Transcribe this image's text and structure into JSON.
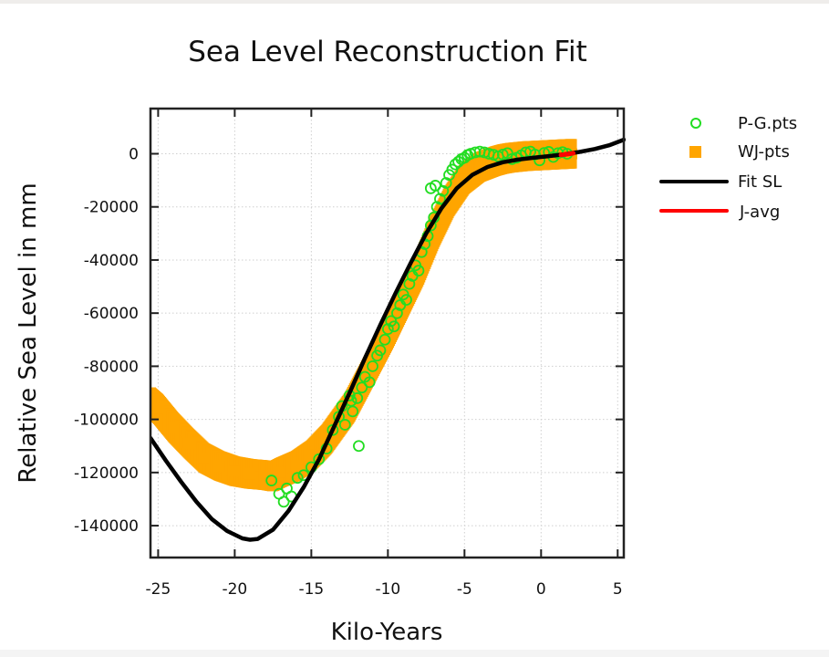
{
  "chart_data": {
    "type": "scatter",
    "title": "Sea Level Reconstruction Fit",
    "xlabel": "Kilo-Years",
    "ylabel": "Relative Sea Level in mm",
    "xlim": [
      -25.5,
      5.4
    ],
    "ylim": [
      -152000,
      17000
    ],
    "grid": true,
    "legend_position": "outside-top-right",
    "xticks": [
      -25,
      -20,
      -15,
      -10,
      -5,
      0,
      5
    ],
    "xtick_labels": [
      "-25",
      "-20",
      "-15",
      "-10",
      "-5",
      "0",
      "5"
    ],
    "yticks": [
      0,
      -20000,
      -40000,
      -60000,
      -80000,
      -100000,
      -120000,
      -140000
    ],
    "ytick_labels": [
      "0",
      "-20000",
      "-40000",
      "-60000",
      "-80000",
      "-100000",
      "-120000",
      "-140000"
    ],
    "series": [
      {
        "name": "P-G.pts",
        "kind": "scatter-open-circle",
        "color": "#22dd22",
        "x": [
          -17.6,
          -17.1,
          -16.8,
          -16.6,
          -16.3,
          -15.9,
          -15.5,
          -15.0,
          -14.5,
          -14.0,
          -13.6,
          -13.2,
          -13.0,
          -12.8,
          -12.5,
          -12.3,
          -12.0,
          -11.7,
          -11.5,
          -11.2,
          -11.0,
          -10.7,
          -10.5,
          -10.2,
          -10.0,
          -9.8,
          -9.6,
          -9.4,
          -9.2,
          -9.0,
          -8.8,
          -8.6,
          -8.4,
          -8.2,
          -8.0,
          -7.8,
          -7.6,
          -7.4,
          -7.2,
          -7.0,
          -6.8,
          -6.6,
          -6.4,
          -6.2,
          -6.0,
          -5.8,
          -5.6,
          -5.4,
          -5.2,
          -5.0,
          -4.8,
          -4.6,
          -4.3,
          -4.0,
          -3.7,
          -3.4,
          -3.1,
          -2.8,
          -2.5,
          -2.2,
          -1.9,
          -1.6,
          -1.3,
          -1.0,
          -0.7,
          -0.4,
          -0.1,
          0.2,
          0.5,
          0.8,
          1.1,
          1.4,
          1.7,
          -7.2,
          -6.9,
          -12.4,
          -11.9
        ],
        "y": [
          -123000,
          -128000,
          -131000,
          -126000,
          -129000,
          -122000,
          -121000,
          -118000,
          -115000,
          -111000,
          -104000,
          -99000,
          -95000,
          -102000,
          -91000,
          -97000,
          -92000,
          -88000,
          -84000,
          -86000,
          -80000,
          -76000,
          -74000,
          -70000,
          -66000,
          -63000,
          -65000,
          -60000,
          -57000,
          -53000,
          -55000,
          -49000,
          -46000,
          -42000,
          -44000,
          -37000,
          -34000,
          -31000,
          -27000,
          -24000,
          -20000,
          -17000,
          -14000,
          -11000,
          -8000,
          -6000,
          -4000,
          -3000,
          -2000,
          -1500,
          -500,
          0,
          500,
          800,
          500,
          0,
          -400,
          -1000,
          -300,
          200,
          -2000,
          -1500,
          -600,
          500,
          800,
          -300,
          -2500,
          300,
          700,
          -1200,
          200,
          600,
          0,
          -13000,
          -12000,
          -93000,
          -110000
        ]
      },
      {
        "name": "WJ-pts",
        "kind": "scatter-filled-square",
        "color": "#ffa500",
        "x": [
          -25.5,
          -25.0,
          -24.0,
          -23.0,
          -22.0,
          -21.0,
          -20.0,
          -19.0,
          -18.0,
          -17.5,
          -17.0,
          -16.0,
          -15.0,
          -14.0,
          -13.0,
          -12.5,
          -12.0,
          -11.0,
          -10.0,
          -9.0,
          -8.0,
          -7.5,
          -7.0,
          -6.0,
          -5.0,
          -4.0,
          -3.0,
          -2.5,
          -2.0,
          -1.0,
          0.0,
          1.0,
          2.0
        ],
        "y": [
          -93500,
          -96000,
          -103000,
          -109000,
          -114500,
          -117500,
          -119500,
          -120500,
          -121000,
          -121500,
          -120000,
          -117500,
          -113500,
          -107500,
          -99500,
          -95500,
          -90000,
          -79000,
          -68000,
          -56000,
          -44000,
          -37000,
          -30000,
          -18000,
          -9500,
          -5000,
          -2800,
          -2000,
          -1500,
          -900,
          -600,
          -300,
          0
        ]
      },
      {
        "name": "Fit SL",
        "kind": "line",
        "color": "#000000",
        "x": [
          -25.5,
          -24.5,
          -23.5,
          -22.5,
          -21.5,
          -20.5,
          -19.5,
          -19.0,
          -18.5,
          -17.5,
          -16.5,
          -15.5,
          -14.5,
          -13.5,
          -12.5,
          -11.5,
          -10.5,
          -9.5,
          -8.5,
          -7.5,
          -6.5,
          -5.5,
          -4.5,
          -3.5,
          -2.5,
          -1.5,
          -0.5,
          0.5,
          1.5,
          2.5,
          3.5,
          4.5,
          5.4
        ],
        "y": [
          -107000,
          -115500,
          -123500,
          -131000,
          -137500,
          -142000,
          -144800,
          -145300,
          -145000,
          -141500,
          -134500,
          -125500,
          -115000,
          -102500,
          -90000,
          -77000,
          -64500,
          -52500,
          -41000,
          -30000,
          -20500,
          -13000,
          -8000,
          -5000,
          -3200,
          -2200,
          -1500,
          -900,
          -200,
          700,
          1800,
          3300,
          5300
        ]
      },
      {
        "name": "J-avg",
        "kind": "line",
        "color": "#ff0000",
        "x": [
          1.3,
          1.6,
          1.9,
          2.1
        ],
        "y": [
          -500,
          -250,
          0,
          200
        ]
      }
    ]
  }
}
